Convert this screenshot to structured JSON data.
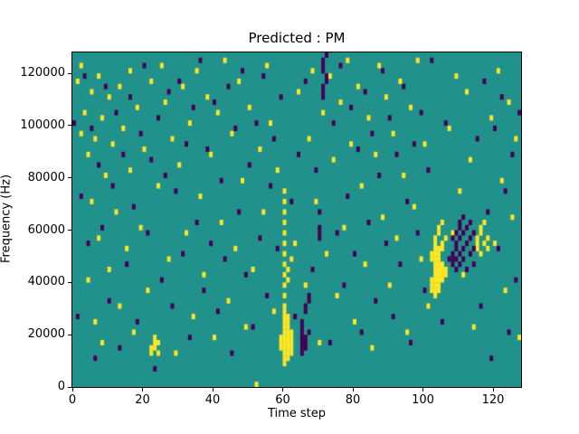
{
  "chart_data": {
    "type": "heatmap",
    "title": "Predicted : PM",
    "xlabel": "Time step",
    "ylabel": "Frequency (Hz)",
    "xlim": [
      0,
      128
    ],
    "ylim": [
      0,
      128000
    ],
    "x_ticks": [
      0,
      20,
      40,
      60,
      80,
      100,
      120
    ],
    "y_ticks": [
      0,
      20000,
      40000,
      60000,
      80000,
      100000,
      120000
    ],
    "grid": false,
    "legend": false,
    "colors": {
      "background": "#21918c",
      "high": "#fde725",
      "low": "#440154",
      "figure_background": "#ffffff"
    },
    "cell": {
      "width_steps": 1,
      "height_hz": 2000,
      "rows": 64,
      "cols": 128
    },
    "value_legend": "cells given as [time_step, frequency_row]; frequency = row * 2000 Hz",
    "high_cells": [
      [
        59,
        7
      ],
      [
        59,
        8
      ],
      [
        59,
        9
      ],
      [
        60,
        4
      ],
      [
        60,
        5
      ],
      [
        60,
        6
      ],
      [
        60,
        7
      ],
      [
        60,
        8
      ],
      [
        60,
        9
      ],
      [
        60,
        10
      ],
      [
        60,
        11
      ],
      [
        60,
        12
      ],
      [
        60,
        13
      ],
      [
        60,
        14
      ],
      [
        60,
        15
      ],
      [
        60,
        17
      ],
      [
        60,
        19
      ],
      [
        60,
        21
      ],
      [
        60,
        23
      ],
      [
        60,
        25
      ],
      [
        60,
        27
      ],
      [
        60,
        29
      ],
      [
        60,
        31
      ],
      [
        60,
        33
      ],
      [
        60,
        35
      ],
      [
        60,
        37
      ],
      [
        61,
        5
      ],
      [
        61,
        6
      ],
      [
        61,
        7
      ],
      [
        61,
        8
      ],
      [
        61,
        9
      ],
      [
        61,
        10
      ],
      [
        61,
        11
      ],
      [
        61,
        12
      ],
      [
        61,
        13
      ],
      [
        61,
        20
      ],
      [
        61,
        22
      ],
      [
        62,
        6
      ],
      [
        62,
        7
      ],
      [
        62,
        8
      ],
      [
        62,
        9
      ],
      [
        62,
        10
      ],
      [
        62,
        24
      ],
      [
        102,
        18
      ],
      [
        102,
        19
      ],
      [
        102,
        20
      ],
      [
        102,
        24
      ],
      [
        102,
        25
      ],
      [
        103,
        17
      ],
      [
        103,
        18
      ],
      [
        103,
        19
      ],
      [
        103,
        20
      ],
      [
        103,
        21
      ],
      [
        103,
        22
      ],
      [
        103,
        23
      ],
      [
        103,
        24
      ],
      [
        103,
        25
      ],
      [
        103,
        26
      ],
      [
        103,
        27
      ],
      [
        103,
        28
      ],
      [
        104,
        18
      ],
      [
        104,
        19
      ],
      [
        104,
        20
      ],
      [
        104,
        21
      ],
      [
        104,
        22
      ],
      [
        104,
        23
      ],
      [
        104,
        24
      ],
      [
        104,
        25
      ],
      [
        104,
        26
      ],
      [
        104,
        29
      ],
      [
        104,
        30
      ],
      [
        105,
        20
      ],
      [
        105,
        21
      ],
      [
        105,
        22
      ],
      [
        105,
        23
      ],
      [
        105,
        26
      ],
      [
        105,
        27
      ],
      [
        105,
        31
      ],
      [
        106,
        21
      ],
      [
        106,
        22
      ],
      [
        106,
        28
      ],
      [
        115,
        26
      ],
      [
        115,
        27
      ],
      [
        115,
        28
      ],
      [
        116,
        25
      ],
      [
        116,
        29
      ],
      [
        116,
        30
      ],
      [
        117,
        27
      ],
      [
        117,
        31
      ],
      [
        118,
        26
      ],
      [
        118,
        28
      ],
      [
        22,
        6
      ],
      [
        22,
        7
      ],
      [
        23,
        7
      ],
      [
        23,
        8
      ],
      [
        23,
        9
      ],
      [
        24,
        6
      ],
      [
        24,
        8
      ],
      [
        1,
        58
      ],
      [
        2,
        61
      ],
      [
        2,
        48
      ],
      [
        3,
        52
      ],
      [
        4,
        44
      ],
      [
        4,
        20
      ],
      [
        5,
        56
      ],
      [
        5,
        35
      ],
      [
        6,
        47
      ],
      [
        6,
        12
      ],
      [
        7,
        59
      ],
      [
        7,
        28
      ],
      [
        8,
        51
      ],
      [
        8,
        8
      ],
      [
        9,
        40
      ],
      [
        10,
        55
      ],
      [
        10,
        22
      ],
      [
        11,
        46
      ],
      [
        12,
        33
      ],
      [
        13,
        57
      ],
      [
        13,
        15
      ],
      [
        14,
        49
      ],
      [
        15,
        26
      ],
      [
        16,
        60
      ],
      [
        16,
        41
      ],
      [
        17,
        10
      ],
      [
        18,
        53
      ],
      [
        19,
        30
      ],
      [
        20,
        45
      ],
      [
        21,
        18
      ],
      [
        22,
        58
      ],
      [
        24,
        38
      ],
      [
        25,
        61
      ],
      [
        26,
        54
      ],
      [
        27,
        24
      ],
      [
        28,
        47
      ],
      [
        29,
        6
      ],
      [
        30,
        42
      ],
      [
        31,
        57
      ],
      [
        32,
        29
      ],
      [
        33,
        50
      ],
      [
        34,
        13
      ],
      [
        35,
        60
      ],
      [
        36,
        36
      ],
      [
        37,
        21
      ],
      [
        38,
        55
      ],
      [
        39,
        44
      ],
      [
        40,
        9
      ],
      [
        41,
        52
      ],
      [
        42,
        31
      ],
      [
        43,
        62
      ],
      [
        44,
        16
      ],
      [
        45,
        48
      ],
      [
        46,
        26
      ],
      [
        47,
        58
      ],
      [
        48,
        39
      ],
      [
        49,
        11
      ],
      [
        50,
        53
      ],
      [
        51,
        22
      ],
      [
        52,
        0
      ],
      [
        53,
        45
      ],
      [
        54,
        33
      ],
      [
        55,
        61
      ],
      [
        56,
        50
      ],
      [
        57,
        14
      ],
      [
        58,
        41
      ],
      [
        63,
        27
      ],
      [
        64,
        56
      ],
      [
        66,
        19
      ],
      [
        67,
        47
      ],
      [
        68,
        60
      ],
      [
        69,
        35
      ],
      [
        70,
        8
      ],
      [
        71,
        52
      ],
      [
        72,
        25
      ],
      [
        73,
        59
      ],
      [
        74,
        43
      ],
      [
        75,
        17
      ],
      [
        76,
        54
      ],
      [
        77,
        30
      ],
      [
        78,
        62
      ],
      [
        79,
        46
      ],
      [
        80,
        12
      ],
      [
        81,
        57
      ],
      [
        82,
        38
      ],
      [
        83,
        23
      ],
      [
        84,
        51
      ],
      [
        85,
        7
      ],
      [
        86,
        44
      ],
      [
        87,
        61
      ],
      [
        88,
        32
      ],
      [
        89,
        55
      ],
      [
        90,
        19
      ],
      [
        91,
        48
      ],
      [
        92,
        28
      ],
      [
        93,
        58
      ],
      [
        94,
        40
      ],
      [
        95,
        10
      ],
      [
        96,
        53
      ],
      [
        97,
        34
      ],
      [
        98,
        62
      ],
      [
        99,
        24
      ],
      [
        100,
        46
      ],
      [
        101,
        15
      ],
      [
        107,
        49
      ],
      [
        108,
        29
      ],
      [
        109,
        59
      ],
      [
        110,
        37
      ],
      [
        111,
        21
      ],
      [
        112,
        56
      ],
      [
        113,
        43
      ],
      [
        114,
        11
      ],
      [
        119,
        51
      ],
      [
        120,
        27
      ],
      [
        121,
        60
      ],
      [
        122,
        39
      ],
      [
        123,
        18
      ],
      [
        124,
        54
      ],
      [
        125,
        32
      ],
      [
        126,
        47
      ],
      [
        127,
        9
      ]
    ],
    "low_cells": [
      [
        65,
        6
      ],
      [
        65,
        7
      ],
      [
        65,
        8
      ],
      [
        65,
        9
      ],
      [
        65,
        10
      ],
      [
        65,
        11
      ],
      [
        65,
        12
      ],
      [
        66,
        7
      ],
      [
        66,
        8
      ],
      [
        66,
        9
      ],
      [
        66,
        14
      ],
      [
        66,
        15
      ],
      [
        67,
        10
      ],
      [
        67,
        16
      ],
      [
        67,
        17
      ],
      [
        70,
        28
      ],
      [
        70,
        29
      ],
      [
        70,
        30
      ],
      [
        70,
        33
      ],
      [
        71,
        55
      ],
      [
        71,
        56
      ],
      [
        71,
        57
      ],
      [
        71,
        60
      ],
      [
        71,
        61
      ],
      [
        71,
        62
      ],
      [
        72,
        58
      ],
      [
        72,
        59
      ],
      [
        72,
        63
      ],
      [
        108,
        23
      ],
      [
        108,
        24
      ],
      [
        108,
        25
      ],
      [
        108,
        28
      ],
      [
        109,
        22
      ],
      [
        109,
        24
      ],
      [
        109,
        26
      ],
      [
        109,
        27
      ],
      [
        109,
        29
      ],
      [
        110,
        23
      ],
      [
        110,
        25
      ],
      [
        110,
        28
      ],
      [
        110,
        30
      ],
      [
        110,
        31
      ],
      [
        111,
        24
      ],
      [
        111,
        26
      ],
      [
        111,
        29
      ],
      [
        111,
        32
      ],
      [
        112,
        22
      ],
      [
        112,
        27
      ],
      [
        112,
        30
      ],
      [
        113,
        25
      ],
      [
        113,
        28
      ],
      [
        113,
        31
      ],
      [
        114,
        23
      ],
      [
        114,
        26
      ],
      [
        114,
        29
      ],
      [
        0,
        50
      ],
      [
        1,
        13
      ],
      [
        2,
        36
      ],
      [
        3,
        59
      ],
      [
        4,
        27
      ],
      [
        5,
        49
      ],
      [
        6,
        5
      ],
      [
        7,
        42
      ],
      [
        8,
        30
      ],
      [
        9,
        57
      ],
      [
        10,
        16
      ],
      [
        11,
        38
      ],
      [
        12,
        52
      ],
      [
        13,
        7
      ],
      [
        14,
        44
      ],
      [
        15,
        23
      ],
      [
        16,
        55
      ],
      [
        17,
        34
      ],
      [
        18,
        12
      ],
      [
        19,
        48
      ],
      [
        20,
        61
      ],
      [
        21,
        29
      ],
      [
        22,
        43
      ],
      [
        23,
        3
      ],
      [
        24,
        51
      ],
      [
        25,
        20
      ],
      [
        26,
        40
      ],
      [
        27,
        56
      ],
      [
        28,
        15
      ],
      [
        29,
        37
      ],
      [
        30,
        58
      ],
      [
        31,
        25
      ],
      [
        32,
        46
      ],
      [
        33,
        9
      ],
      [
        34,
        53
      ],
      [
        35,
        31
      ],
      [
        36,
        62
      ],
      [
        37,
        18
      ],
      [
        38,
        45
      ],
      [
        39,
        27
      ],
      [
        40,
        54
      ],
      [
        41,
        14
      ],
      [
        42,
        39
      ],
      [
        43,
        24
      ],
      [
        44,
        57
      ],
      [
        45,
        6
      ],
      [
        46,
        49
      ],
      [
        47,
        33
      ],
      [
        48,
        60
      ],
      [
        49,
        21
      ],
      [
        50,
        42
      ],
      [
        51,
        11
      ],
      [
        52,
        50
      ],
      [
        53,
        28
      ],
      [
        54,
        59
      ],
      [
        55,
        17
      ],
      [
        56,
        38
      ],
      [
        57,
        47
      ],
      [
        58,
        26
      ],
      [
        59,
        55
      ],
      [
        62,
        35
      ],
      [
        63,
        13
      ],
      [
        64,
        44
      ],
      [
        66,
        58
      ],
      [
        68,
        22
      ],
      [
        69,
        41
      ],
      [
        73,
        8
      ],
      [
        74,
        50
      ],
      [
        75,
        29
      ],
      [
        76,
        61
      ],
      [
        77,
        19
      ],
      [
        78,
        36
      ],
      [
        79,
        53
      ],
      [
        80,
        25
      ],
      [
        81,
        45
      ],
      [
        82,
        10
      ],
      [
        83,
        56
      ],
      [
        84,
        31
      ],
      [
        85,
        48
      ],
      [
        86,
        16
      ],
      [
        87,
        40
      ],
      [
        88,
        60
      ],
      [
        89,
        27
      ],
      [
        90,
        51
      ],
      [
        91,
        13
      ],
      [
        92,
        44
      ],
      [
        93,
        23
      ],
      [
        94,
        57
      ],
      [
        95,
        35
      ],
      [
        96,
        8
      ],
      [
        97,
        46
      ],
      [
        98,
        29
      ],
      [
        99,
        52
      ],
      [
        100,
        18
      ],
      [
        101,
        41
      ],
      [
        102,
        62
      ],
      [
        105,
        12
      ],
      [
        106,
        50
      ],
      [
        107,
        24
      ],
      [
        115,
        47
      ],
      [
        116,
        15
      ],
      [
        117,
        58
      ],
      [
        118,
        33
      ],
      [
        119,
        5
      ],
      [
        120,
        49
      ],
      [
        121,
        26
      ],
      [
        122,
        55
      ],
      [
        123,
        37
      ],
      [
        124,
        10
      ],
      [
        125,
        44
      ],
      [
        126,
        20
      ],
      [
        127,
        52
      ]
    ]
  }
}
